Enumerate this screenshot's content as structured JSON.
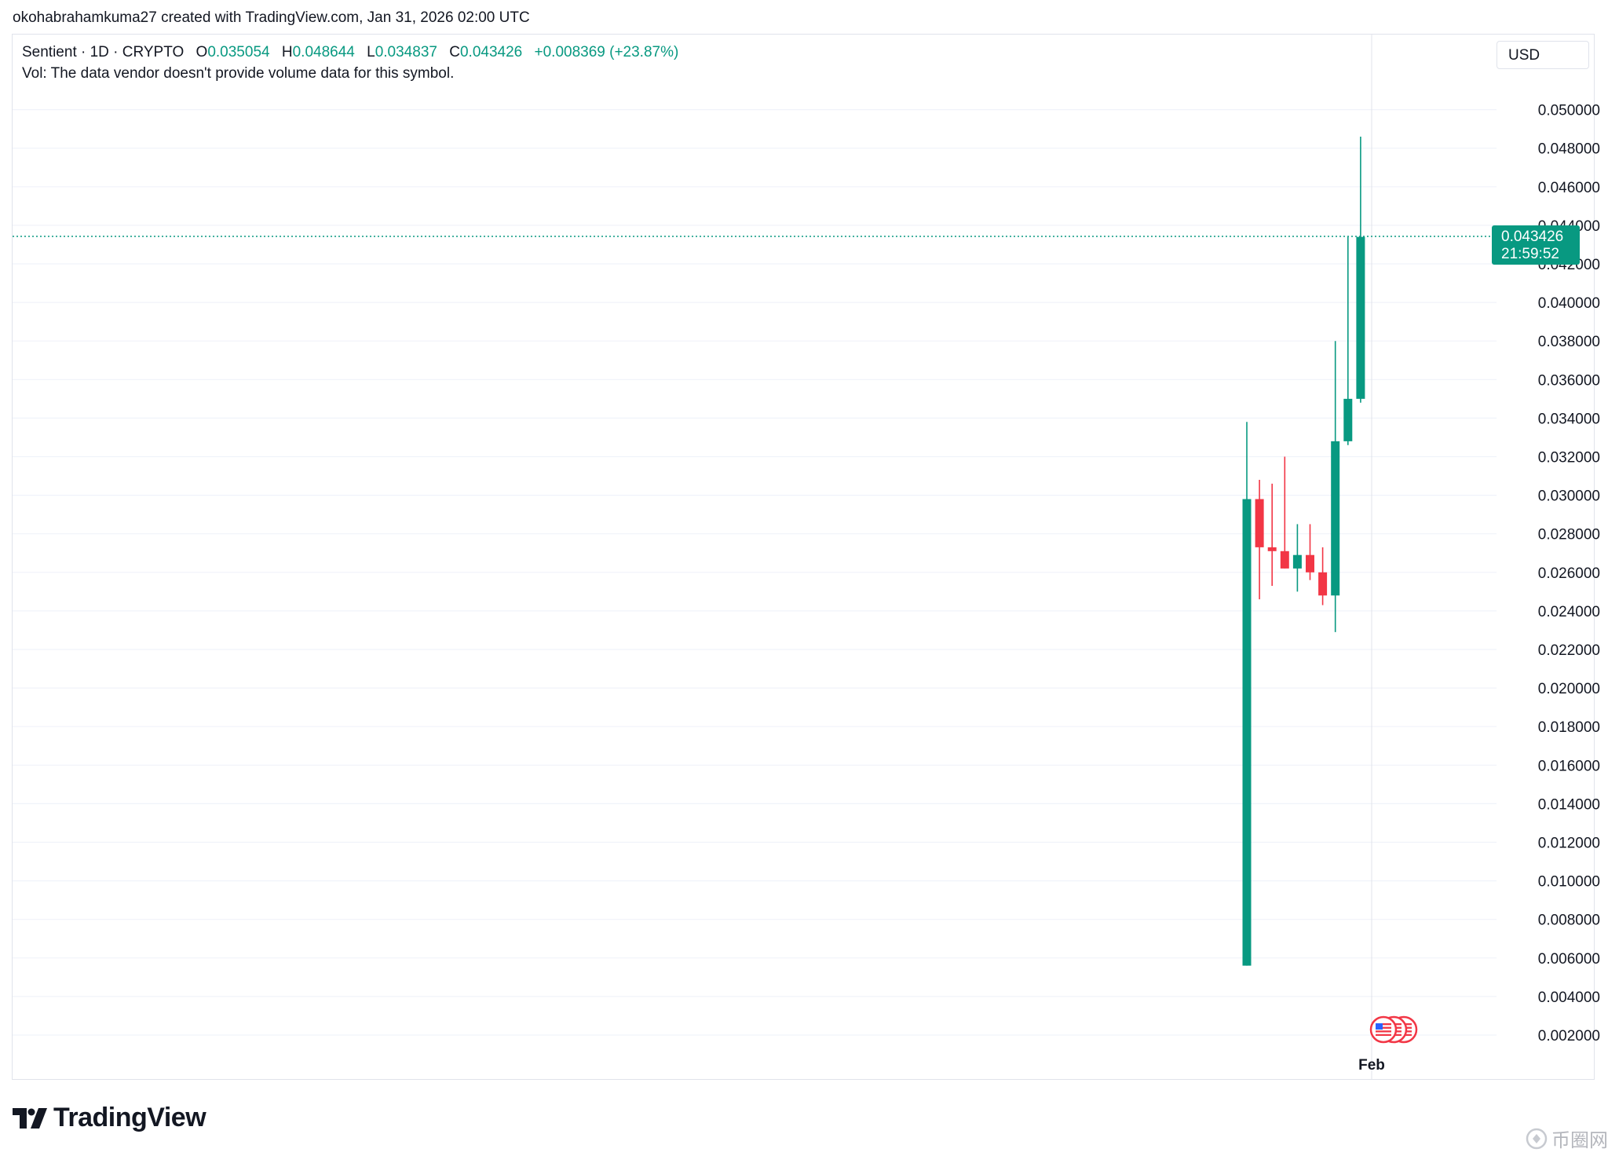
{
  "header": {
    "credit": "okohabrahamkuma27 created with TradingView.com, Jan 31, 2026 02:00 UTC"
  },
  "legend": {
    "symbol": "Sentient · 1D · CRYPTO",
    "o_label": "O",
    "o_value": "0.035054",
    "h_label": "H",
    "h_value": "0.048644",
    "l_label": "L",
    "l_value": "0.034837",
    "c_label": "C",
    "c_value": "0.043426",
    "change": "+0.008369 (+23.87%)",
    "volume_note": "Vol: The data vendor doesn't provide volume data for this symbol."
  },
  "currency_button": "USD",
  "price_label": {
    "price": "0.043426",
    "countdown": "21:59:52"
  },
  "footer": {
    "logo_text": "TradingView",
    "watermark": "币圈网"
  },
  "colors": {
    "up": "#089981",
    "down": "#f23645",
    "grid": "#f0f3fa",
    "text": "#131722"
  },
  "icons": [
    "tradingview-logo-icon",
    "us-flag-event-icon"
  ],
  "chart_data": {
    "type": "candlestick",
    "title": "Sentient · 1D · CRYPTO",
    "ylabel": "USD",
    "ylim": [
      0.001,
      0.0515
    ],
    "y_ticks": [
      "0.050000",
      "0.048000",
      "0.046000",
      "0.044000",
      "0.042000",
      "0.040000",
      "0.038000",
      "0.036000",
      "0.034000",
      "0.032000",
      "0.030000",
      "0.028000",
      "0.026000",
      "0.024000",
      "0.022000",
      "0.020000",
      "0.018000",
      "0.016000",
      "0.014000",
      "0.012000",
      "0.010000",
      "0.008000",
      "0.006000",
      "0.004000",
      "0.002000"
    ],
    "x_ticks": [
      "Feb"
    ],
    "grid": true,
    "candles": [
      {
        "open": 0.0056,
        "high": 0.0338,
        "low": 0.0056,
        "close": 0.0298
      },
      {
        "open": 0.0298,
        "high": 0.0308,
        "low": 0.0246,
        "close": 0.0273
      },
      {
        "open": 0.0273,
        "high": 0.0306,
        "low": 0.0253,
        "close": 0.0271
      },
      {
        "open": 0.0271,
        "high": 0.032,
        "low": 0.0262,
        "close": 0.0262
      },
      {
        "open": 0.0262,
        "high": 0.0285,
        "low": 0.025,
        "close": 0.0269
      },
      {
        "open": 0.0269,
        "high": 0.0285,
        "low": 0.0256,
        "close": 0.026
      },
      {
        "open": 0.026,
        "high": 0.0273,
        "low": 0.0243,
        "close": 0.0248
      },
      {
        "open": 0.0248,
        "high": 0.038,
        "low": 0.0229,
        "close": 0.0328
      },
      {
        "open": 0.0328,
        "high": 0.0434,
        "low": 0.0326,
        "close": 0.035
      },
      {
        "open": 0.035,
        "high": 0.0486,
        "low": 0.0348,
        "close": 0.0434
      }
    ],
    "last_price": 0.043426
  }
}
